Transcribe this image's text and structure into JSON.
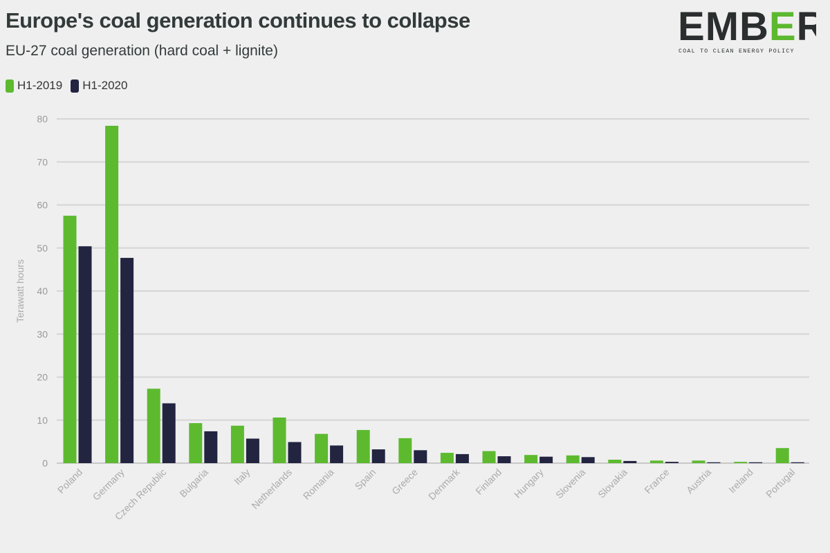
{
  "header": {
    "title": "Europe's coal generation continues to collapse",
    "subtitle": "EU-27 coal generation (hard coal + lignite)"
  },
  "logo": {
    "name": "EMBER",
    "tagline": "COAL TO CLEAN ENERGY POLICY",
    "accent_color": "#5cb82f",
    "text_color": "#2b2e2e"
  },
  "chart_data": {
    "type": "bar",
    "ylabel": "Terawatt hours",
    "xlabel": "",
    "ylim": [
      0,
      80
    ],
    "yticks": [
      0,
      10,
      20,
      30,
      40,
      50,
      60,
      70,
      80
    ],
    "grid": true,
    "legend_position": "top-left",
    "categories": [
      "Poland",
      "Germany",
      "Czech Republic",
      "Bulgaria",
      "Italy",
      "Netherlands",
      "Romania",
      "Spain",
      "Greece",
      "Denmark",
      "Finland",
      "Hungary",
      "Slovenia",
      "Slovakia",
      "France",
      "Austria",
      "Ireland",
      "Portugal"
    ],
    "series": [
      {
        "name": "H1-2019",
        "color": "#5dba2f",
        "values": [
          57.5,
          78.4,
          17.3,
          9.3,
          8.7,
          10.6,
          6.8,
          7.7,
          5.8,
          2.4,
          2.8,
          1.9,
          1.8,
          0.8,
          0.6,
          0.6,
          0.3,
          3.5
        ]
      },
      {
        "name": "H1-2020",
        "color": "#222440",
        "values": [
          50.4,
          47.7,
          13.9,
          7.4,
          5.7,
          4.9,
          4.1,
          3.2,
          3.0,
          2.1,
          1.6,
          1.5,
          1.4,
          0.5,
          0.3,
          0.2,
          0.2,
          0.2
        ]
      }
    ]
  }
}
